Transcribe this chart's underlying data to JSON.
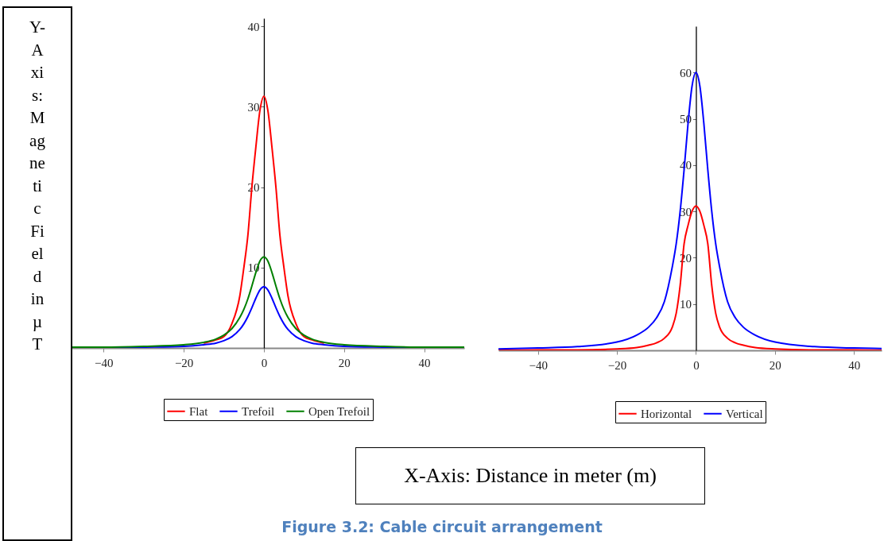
{
  "chart_data": [
    {
      "type": "line",
      "ylabel": "Y-Axis: Magnetic Field in µT",
      "x": [
        -48,
        -40,
        -30,
        -20,
        -15,
        -12,
        -10,
        -8,
        -6,
        -5,
        -4,
        -3,
        -2,
        -1,
        0,
        1,
        2,
        3,
        4,
        5,
        6,
        8,
        10,
        12,
        15,
        20,
        30,
        40,
        50
      ],
      "series": [
        {
          "name": "Flat",
          "color": "#ff0000",
          "values": [
            null,
            null,
            null,
            null,
            0.6,
            1.0,
            1.4,
            3.0,
            6.5,
            10,
            14,
            20,
            25,
            29.5,
            31.3,
            29.5,
            25,
            20,
            14,
            10,
            6.5,
            3.0,
            1.4,
            1.0,
            0.6,
            null,
            null,
            null,
            null
          ]
        },
        {
          "name": "Trefoil",
          "color": "#0000ff",
          "values": [
            0,
            null,
            0.1,
            0.2,
            0.4,
            0.6,
            0.9,
            1.4,
            2.3,
            3.0,
            3.9,
            5.0,
            6.2,
            7.2,
            7.6,
            7.2,
            6.2,
            5.0,
            3.9,
            3.0,
            2.3,
            1.4,
            0.9,
            0.6,
            0.4,
            0.2,
            0.1,
            null,
            0
          ]
        },
        {
          "name": "Open Trefoil",
          "color": "#008000",
          "values": [
            0.1,
            0.1,
            0.2,
            0.4,
            0.7,
            1.1,
            1.6,
            2.4,
            3.8,
            4.8,
            6.1,
            7.7,
            9.4,
            10.8,
            11.3,
            10.8,
            9.4,
            7.7,
            6.1,
            4.8,
            3.8,
            2.4,
            1.6,
            1.1,
            0.7,
            0.4,
            0.2,
            0.1,
            0.1
          ]
        }
      ],
      "xlim": [
        -48,
        50
      ],
      "ylim": [
        0,
        41
      ],
      "xticks": [
        -40,
        -20,
        0,
        20,
        40
      ],
      "yticks": [
        10,
        20,
        30,
        40
      ],
      "grid": false,
      "legend": "bottom"
    },
    {
      "type": "line",
      "xlabel": "X-Axis: Distance in meter (m)",
      "annotations": [
        "Figure 3.2: Cable circuit arrangement"
      ],
      "x": [
        -50,
        -40,
        -30,
        -20,
        -15,
        -12,
        -10,
        -8,
        -6,
        -5,
        -4,
        -3,
        -2,
        -1,
        0,
        1,
        2,
        3,
        4,
        5,
        6,
        8,
        10,
        12,
        15,
        20,
        30,
        40,
        47
      ],
      "series": [
        {
          "name": "Horizontal",
          "color": "#ff0000",
          "values": [
            0,
            0.1,
            0.1,
            0.3,
            0.6,
            1.1,
            1.6,
            2.6,
            5,
            8,
            14,
            23,
            27,
            30,
            31.2,
            30,
            27,
            23,
            14,
            8,
            5,
            2.6,
            1.6,
            1.1,
            0.6,
            0.3,
            0.1,
            0.1,
            0
          ]
        },
        {
          "name": "Vertical",
          "color": "#0000ff",
          "values": [
            0.3,
            0.5,
            0.8,
            1.8,
            3.3,
            5,
            7,
            10.5,
            18,
            23,
            30,
            39,
            49,
            57,
            60,
            57,
            49,
            39,
            30,
            23,
            18,
            10.5,
            7,
            5,
            3.3,
            1.8,
            0.8,
            0.5,
            0.4
          ]
        }
      ],
      "xlim": [
        -50,
        47
      ],
      "ylim": [
        0,
        70
      ],
      "xticks": [
        -40,
        -20,
        0,
        20,
        40
      ],
      "yticks": [
        10,
        20,
        30,
        40,
        50,
        60
      ],
      "grid": false,
      "legend": "bottom"
    }
  ]
}
